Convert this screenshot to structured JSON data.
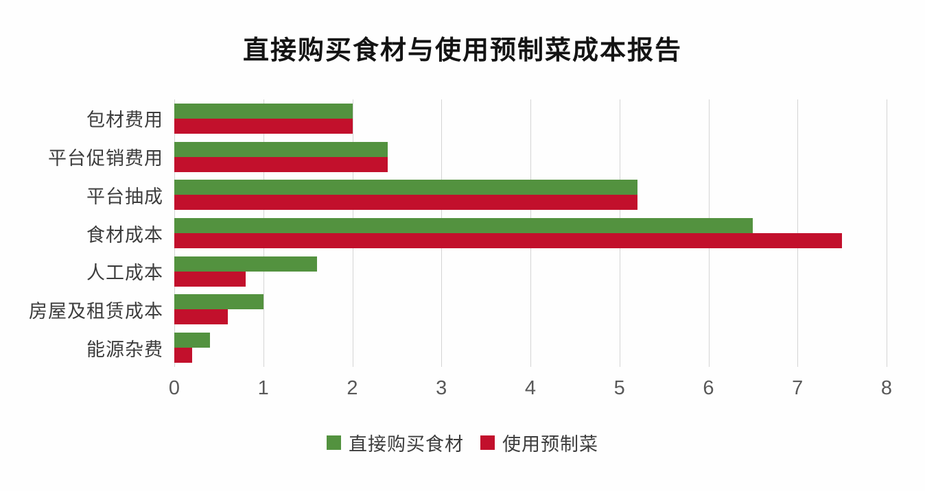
{
  "title": "直接购买食材与使用预制菜成本报告",
  "chart_data": {
    "type": "bar",
    "orientation": "horizontal",
    "title": "直接购买食材与使用预制菜成本报告",
    "categories": [
      "包材费用",
      "平台促销费用",
      "平台抽成",
      "食材成本",
      "人工成本",
      "房屋及租赁成本",
      "能源杂费"
    ],
    "series": [
      {
        "name": "直接购买食材",
        "color": "#53923f",
        "values": [
          2,
          2.4,
          5.2,
          6.5,
          1.6,
          1.0,
          0.4
        ]
      },
      {
        "name": "使用预制菜",
        "color": "#c2102c",
        "values": [
          2,
          2.4,
          5.2,
          7.5,
          0.8,
          0.6,
          0.2
        ]
      }
    ],
    "xlabel": "",
    "ylabel": "",
    "xlim": [
      0,
      8
    ],
    "x_ticks": [
      0,
      1,
      2,
      3,
      4,
      5,
      6,
      7,
      8
    ],
    "grid": "vertical-only",
    "gridline_color": "#d4d4d4",
    "legend_position": "bottom-center",
    "text_color": "#3d3d3d",
    "tick_color": "#595959"
  }
}
